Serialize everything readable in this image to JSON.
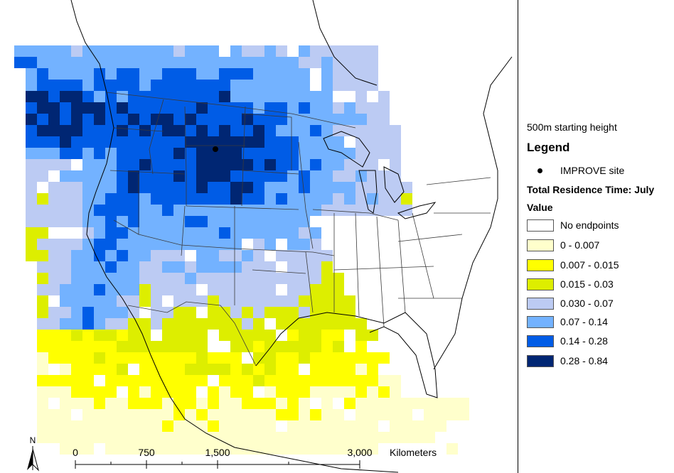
{
  "legend": {
    "subtitle": "500m starting height",
    "title": "Legend",
    "site_label": "IMPROVE site",
    "layer_title": "Total Residence Time: July",
    "field_label": "Value",
    "classes": [
      {
        "label": "No endpoints",
        "color": "#ffffff"
      },
      {
        "label": "0 - 0.007",
        "color": "#ffffcc"
      },
      {
        "label": "0.007 - 0.015",
        "color": "#ffff00"
      },
      {
        "label": "0.015 - 0.03",
        "color": "#ddee00"
      },
      {
        "label": "0.030 - 0.07",
        "color": "#bccbf3"
      },
      {
        "label": "0.07 - 0.14",
        "color": "#73b2ff"
      },
      {
        "label": "0.14 - 0.28",
        "color": "#005ce6"
      },
      {
        "label": "0.28 - 0.84",
        "color": "#002673"
      }
    ]
  },
  "scalebar": {
    "ticks": [
      "0",
      "750",
      "1,500",
      "3,000"
    ],
    "unit": "Kilometers"
  },
  "north_arrow": {
    "label": "N"
  },
  "site": {
    "name": "IMPROVE site"
  }
}
